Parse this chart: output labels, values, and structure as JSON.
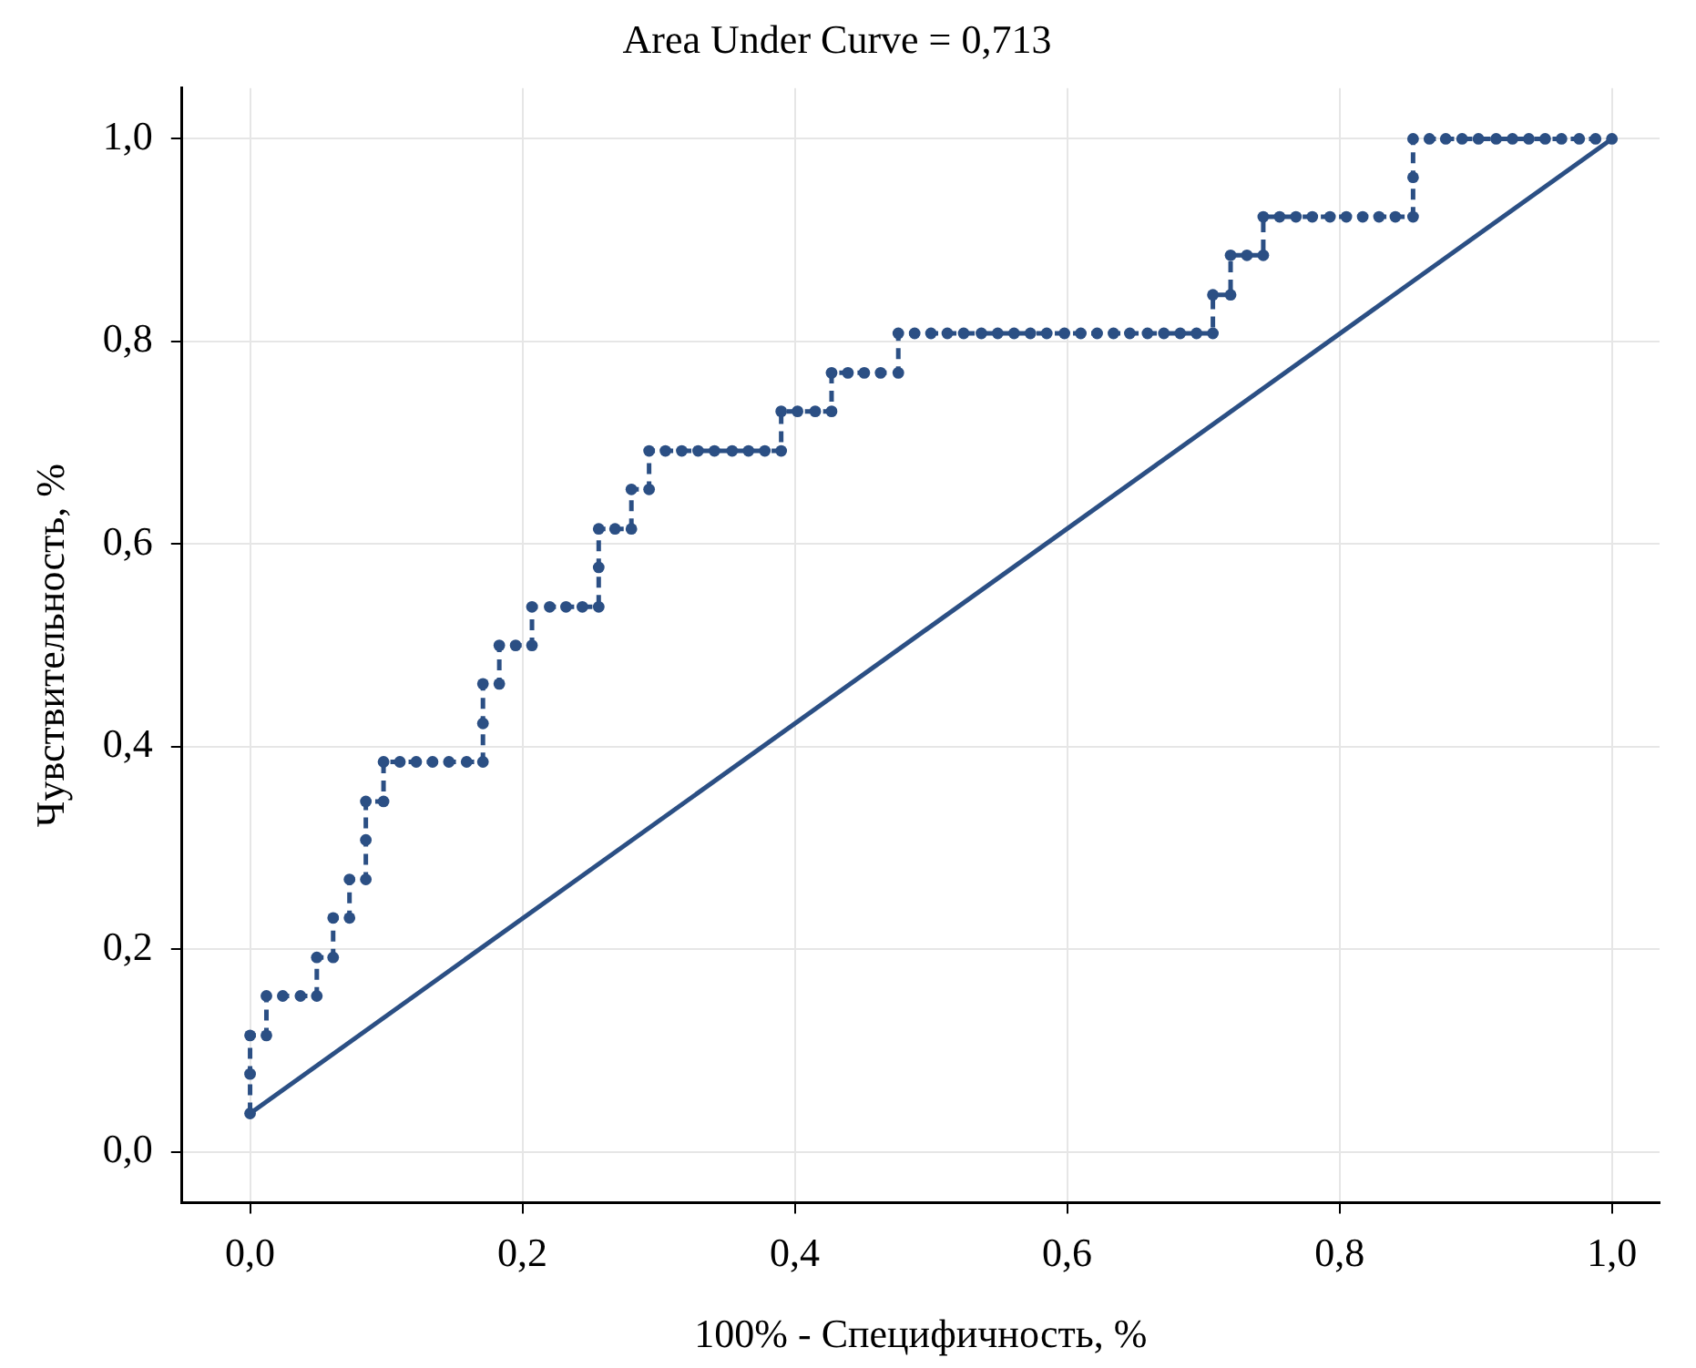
{
  "chart_data": {
    "type": "line",
    "title": "Area Under Curve = 0,713",
    "xlabel": "100% - Специфичность, %",
    "ylabel": "Чувствительность, %",
    "xlim": [
      -0.05,
      1.035
    ],
    "ylim": [
      -0.05,
      1.05
    ],
    "xticks": [
      {
        "value": 0,
        "label": "0,0"
      },
      {
        "value": 0.2,
        "label": "0,2"
      },
      {
        "value": 0.4,
        "label": "0,4"
      },
      {
        "value": 0.6,
        "label": "0,6"
      },
      {
        "value": 0.8,
        "label": "0,8"
      },
      {
        "value": 1,
        "label": "1,0"
      }
    ],
    "yticks": [
      {
        "value": 0,
        "label": "0,0"
      },
      {
        "value": 0.2,
        "label": "0,2"
      },
      {
        "value": 0.4,
        "label": "0,4"
      },
      {
        "value": 0.6,
        "label": "0,6"
      },
      {
        "value": 0.8,
        "label": "0,8"
      },
      {
        "value": 1,
        "label": "1,0"
      }
    ],
    "grid": true,
    "legend": false,
    "series": [
      {
        "type": "line",
        "marker": "circle",
        "line_style": "dashed",
        "color": "#2b4f84",
        "x": [
          0,
          0,
          0,
          0.012,
          0.012,
          0.024,
          0.037,
          0.049,
          0.049,
          0.061,
          0.061,
          0.073,
          0.073,
          0.085,
          0.085,
          0.085,
          0.098,
          0.098,
          0.11,
          0.122,
          0.134,
          0.146,
          0.159,
          0.171,
          0.171,
          0.171,
          0.183,
          0.183,
          0.195,
          0.207,
          0.207,
          0.22,
          0.232,
          0.244,
          0.256,
          0.256,
          0.256,
          0.268,
          0.28,
          0.28,
          0.293,
          0.293,
          0.305,
          0.317,
          0.329,
          0.341,
          0.354,
          0.366,
          0.378,
          0.39,
          0.39,
          0.402,
          0.415,
          0.427,
          0.427,
          0.439,
          0.451,
          0.463,
          0.476,
          0.476,
          0.488,
          0.5,
          0.512,
          0.524,
          0.537,
          0.549,
          0.561,
          0.573,
          0.585,
          0.598,
          0.61,
          0.622,
          0.634,
          0.646,
          0.659,
          0.671,
          0.683,
          0.695,
          0.707,
          0.707,
          0.72,
          0.72,
          0.732,
          0.744,
          0.744,
          0.756,
          0.768,
          0.78,
          0.793,
          0.805,
          0.817,
          0.829,
          0.841,
          0.854,
          0.854,
          0.854,
          0.866,
          0.878,
          0.89,
          0.902,
          0.915,
          0.927,
          0.939,
          0.951,
          0.963,
          0.976,
          0.988,
          1
        ],
        "values": [
          0.038,
          0.077,
          0.115,
          0.115,
          0.154,
          0.154,
          0.154,
          0.154,
          0.192,
          0.192,
          0.231,
          0.231,
          0.269,
          0.269,
          0.308,
          0.346,
          0.346,
          0.385,
          0.385,
          0.385,
          0.385,
          0.385,
          0.385,
          0.385,
          0.423,
          0.462,
          0.462,
          0.5,
          0.5,
          0.5,
          0.538,
          0.538,
          0.538,
          0.538,
          0.538,
          0.577,
          0.615,
          0.615,
          0.615,
          0.654,
          0.654,
          0.692,
          0.692,
          0.692,
          0.692,
          0.692,
          0.692,
          0.692,
          0.692,
          0.692,
          0.731,
          0.731,
          0.731,
          0.731,
          0.769,
          0.769,
          0.769,
          0.769,
          0.769,
          0.808,
          0.808,
          0.808,
          0.808,
          0.808,
          0.808,
          0.808,
          0.808,
          0.808,
          0.808,
          0.808,
          0.808,
          0.808,
          0.808,
          0.808,
          0.808,
          0.808,
          0.808,
          0.808,
          0.808,
          0.846,
          0.846,
          0.885,
          0.885,
          0.885,
          0.923,
          0.923,
          0.923,
          0.923,
          0.923,
          0.923,
          0.923,
          0.923,
          0.923,
          0.923,
          0.962,
          1,
          1,
          1,
          1,
          1,
          1,
          1,
          1,
          1,
          1,
          1,
          1,
          1
        ]
      },
      {
        "type": "line",
        "marker": "none",
        "line_style": "solid",
        "color": "#2b4f84",
        "x": [
          0,
          1
        ],
        "values": [
          0.038,
          1
        ]
      }
    ]
  }
}
